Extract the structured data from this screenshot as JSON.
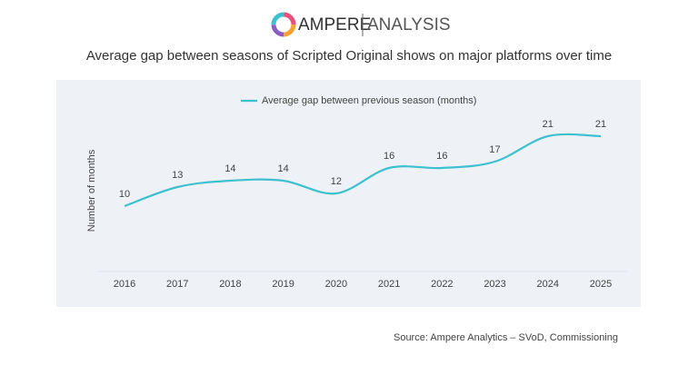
{
  "brand": {
    "name": "AMPERE",
    "product": "ANALYSIS"
  },
  "chart_data": {
    "type": "line",
    "title": "Average gap between seasons of Scripted Original shows on major platforms over time",
    "y_label": "Number of months",
    "categories": [
      "2016",
      "2017",
      "2018",
      "2019",
      "2020",
      "2021",
      "2022",
      "2023",
      "2024",
      "2025"
    ],
    "series": [
      {
        "name": "Average gap between previous season (months)",
        "color": "#3ec1cf",
        "values": [
          10,
          13,
          14,
          14,
          12,
          16,
          16,
          17,
          21,
          21
        ]
      }
    ],
    "source": "Source: Ampere Analytics – SVoD, Commissioning"
  }
}
